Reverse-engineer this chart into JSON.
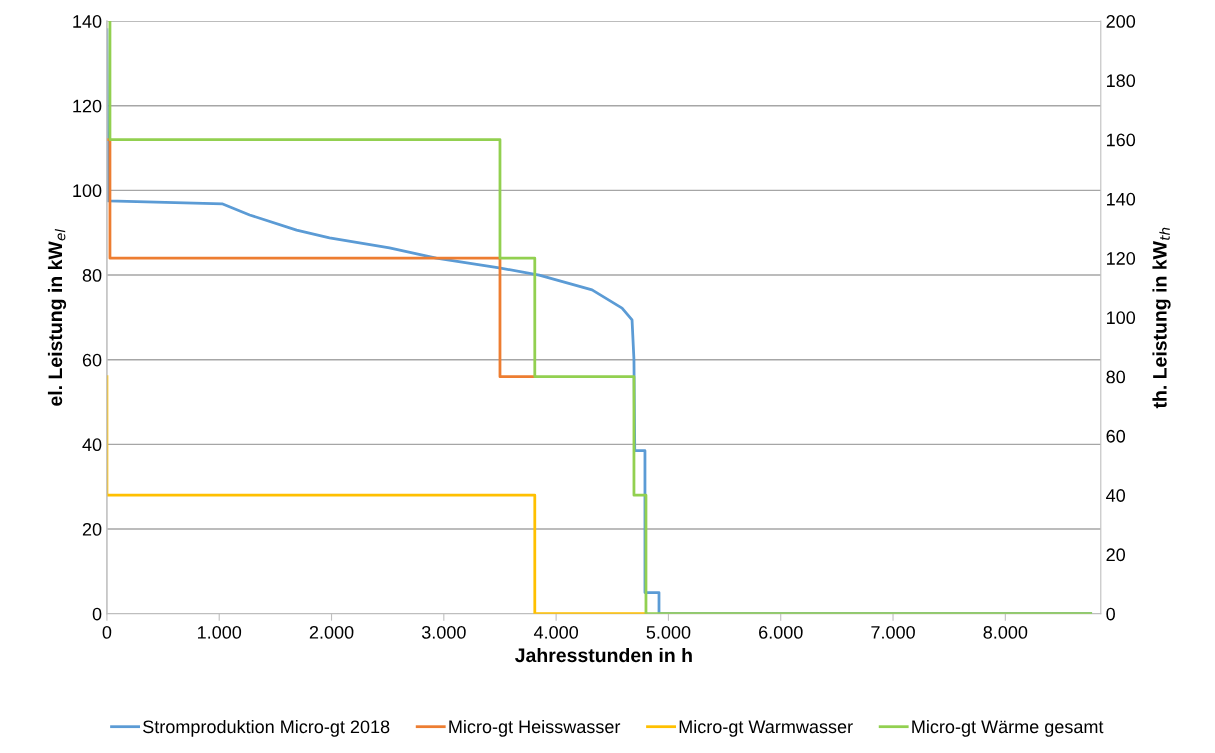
{
  "chart_data": {
    "type": "line",
    "xlabel": "Jahresstunden in h",
    "ylabel": "el. Leistung in kW$_{el}$",
    "y2label": "th. Leistung in kW$_{th}$",
    "xlim": [
      0,
      8850
    ],
    "xticks": [
      0,
      {
        "value": 1000,
        "label": "1.000"
      },
      {
        "value": 2000,
        "label": "2.000"
      },
      {
        "value": 3000,
        "label": "3.000"
      },
      {
        "value": 4000,
        "label": "4.000"
      },
      {
        "value": 5000,
        "label": "5.000"
      },
      {
        "value": 6000,
        "label": "6.000"
      },
      {
        "value": 7000,
        "label": "7.000"
      },
      {
        "value": 8000,
        "label": "8.000"
      }
    ],
    "ylim": [
      0,
      140
    ],
    "yticks": [
      0,
      20,
      40,
      60,
      80,
      100,
      120,
      140
    ],
    "y2lim": [
      0,
      200
    ],
    "y2ticks": [
      0,
      20,
      40,
      60,
      80,
      100,
      120,
      140,
      160,
      180,
      200
    ],
    "grid": "y",
    "legend": "bottom",
    "series": [
      {
        "name": "Stromproduktion Micro-gt 2018",
        "color": "#5b9bd5",
        "x": [
          0,
          10,
          1031,
          1271,
          1689,
          1982,
          2516,
          2933,
          3493,
          3849,
          4320,
          4587,
          4676,
          4693,
          4700,
          4791,
          4791,
          4916,
          4916,
          8760
        ],
        "values": [
          138,
          97.5,
          96.8,
          94.2,
          90.6,
          88.8,
          86.4,
          84.0,
          81.7,
          80.0,
          76.5,
          72.2,
          69.4,
          60,
          38.5,
          38.5,
          5,
          5,
          0,
          0
        ]
      },
      {
        "name": "Micro-gt Heisswasser",
        "color": "#ed7d31",
        "axis": "y2",
        "x": [
          0,
          27,
          27,
          3500,
          3500,
          3810
        ],
        "values": [
          160,
          160,
          120,
          120,
          80,
          80
        ]
      },
      {
        "name": "Micro-gt Warmwasser",
        "color": "#ffc000",
        "axis": "y2",
        "x": [
          0,
          0,
          3810,
          3810,
          4800
        ],
        "values": [
          80,
          40,
          40,
          0,
          0
        ]
      },
      {
        "name": "Micro-gt Wärme gesamt",
        "color": "#92d050",
        "axis": "y2",
        "x": [
          27,
          27,
          3500,
          3500,
          3810,
          3810,
          4693,
          4693,
          4800,
          4800,
          8760
        ],
        "values": [
          200,
          160,
          160,
          120,
          120,
          80,
          80,
          40,
          40,
          0,
          0
        ]
      }
    ]
  }
}
